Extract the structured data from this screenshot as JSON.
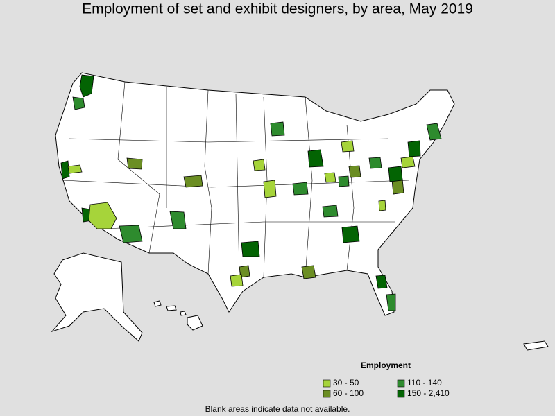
{
  "title": "Employment of set and exhibit designers, by area, May 2019",
  "legend": {
    "title": "Employment",
    "items": [
      {
        "label": "30 - 50",
        "color": "#a6d43a"
      },
      {
        "label": "60 - 100",
        "color": "#6b8e23"
      },
      {
        "label": "110 - 140",
        "color": "#2e8b2e"
      },
      {
        "label": "150 - 2,410",
        "color": "#036403"
      }
    ]
  },
  "footnote": "Blank areas indicate data not available."
}
